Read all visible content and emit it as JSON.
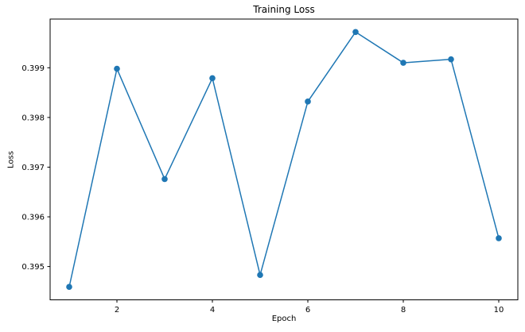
{
  "chart_data": {
    "type": "line",
    "title": "Training Loss",
    "xlabel": "Epoch",
    "ylabel": "Loss",
    "x": [
      1,
      2,
      3,
      4,
      5,
      6,
      7,
      8,
      9,
      10
    ],
    "series": [
      {
        "name": "Training Loss",
        "values": [
          0.39459,
          0.39898,
          0.39676,
          0.39879,
          0.39483,
          0.39832,
          0.39972,
          0.3991,
          0.39917,
          0.39557
        ],
        "color": "#1f77b4",
        "marker": "circle"
      }
    ],
    "xlim": [
      0.6,
      10.4
    ],
    "ylim": [
      0.39433,
      0.39998
    ],
    "xticks": [
      2,
      4,
      6,
      8,
      10
    ],
    "xtick_labels": [
      "2",
      "4",
      "6",
      "8",
      "10"
    ],
    "yticks": [
      0.395,
      0.396,
      0.397,
      0.398,
      0.399
    ],
    "ytick_labels": [
      "0.395",
      "0.396",
      "0.397",
      "0.398",
      "0.399"
    ],
    "grid": false,
    "legend": false,
    "background_color": "#ffffff",
    "spine_color": "#000000",
    "text_color": "#000000"
  }
}
